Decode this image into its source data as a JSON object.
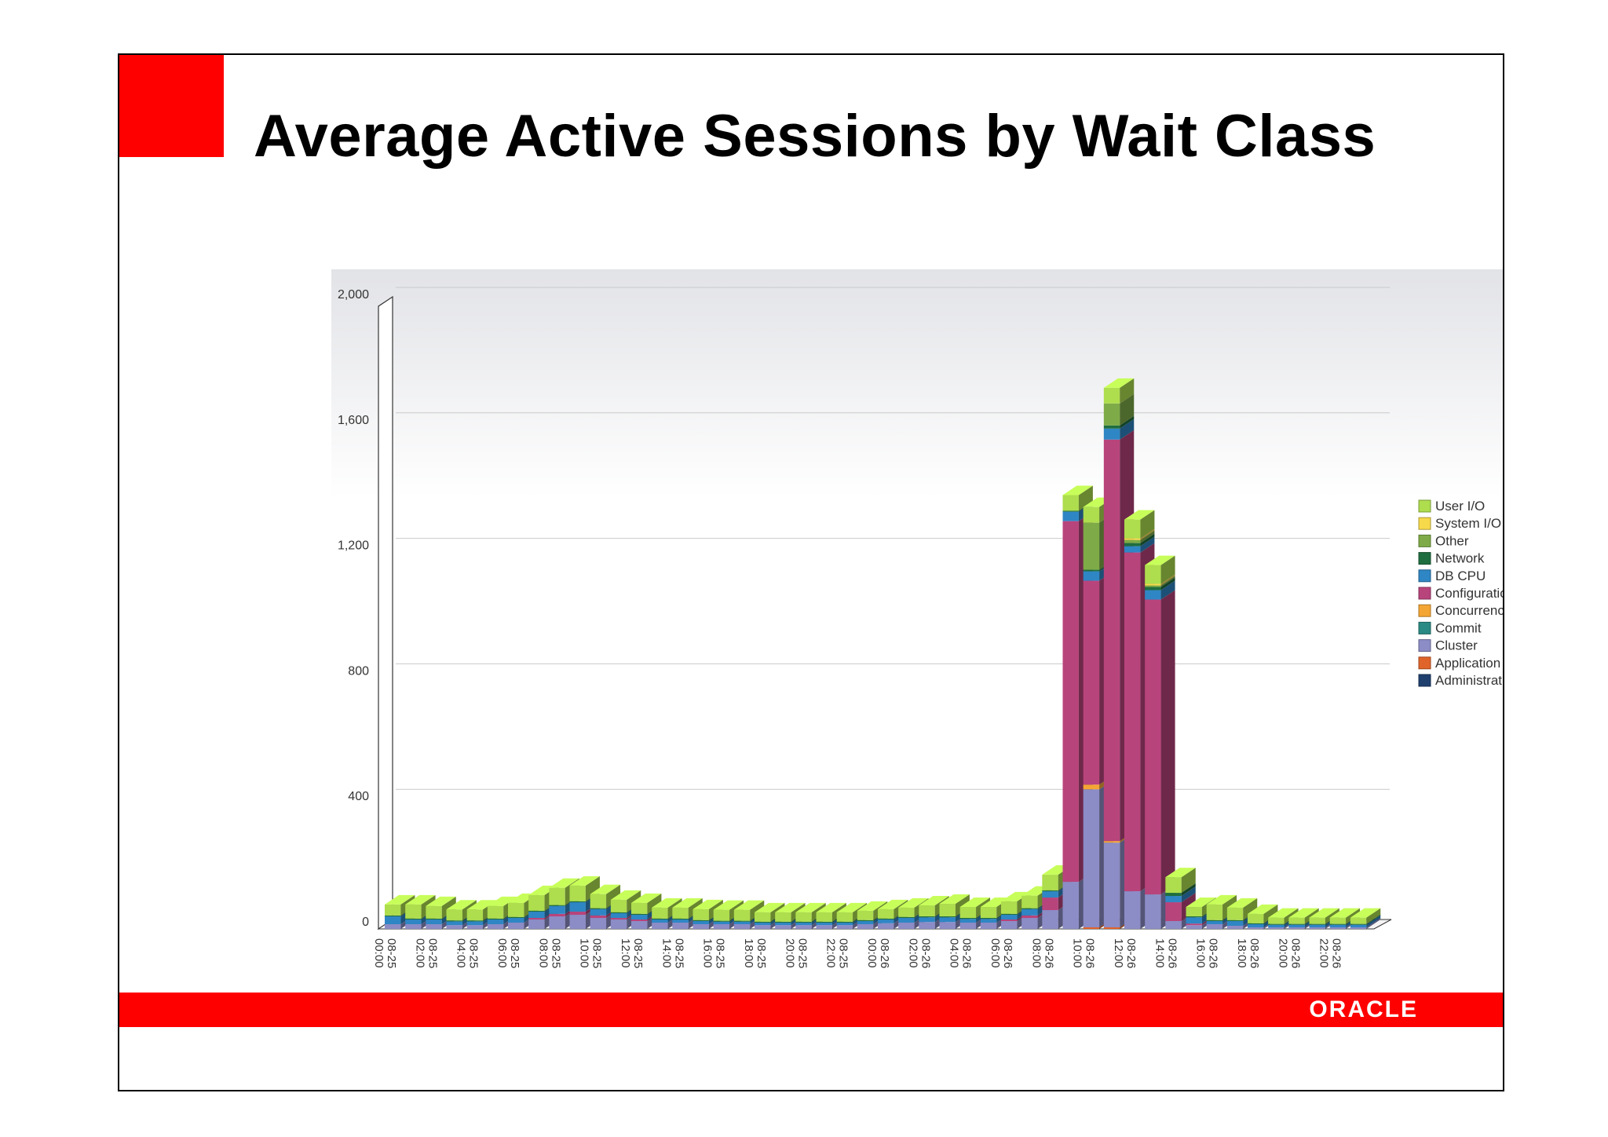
{
  "slide": {
    "title": "Average Active Sessions by Wait Class",
    "logo": "ORACLE",
    "accent_color": "#ff0000"
  },
  "chart_data": {
    "type": "bar",
    "stacked": true,
    "title": "",
    "xlabel": "",
    "ylabel": "",
    "ylim": [
      0,
      2000
    ],
    "yticks": [
      0,
      400,
      800,
      1200,
      1600,
      2000
    ],
    "ytick_labels": [
      "0",
      "400",
      "800",
      "1,200",
      "1,600",
      "2,000"
    ],
    "grid": true,
    "legend_position": "right",
    "categories": [
      "08-25 00:00",
      "08-25 01:00",
      "08-25 02:00",
      "08-25 03:00",
      "08-25 04:00",
      "08-25 05:00",
      "08-25 06:00",
      "08-25 07:00",
      "08-25 08:00",
      "08-25 09:00",
      "08-25 10:00",
      "08-25 11:00",
      "08-25 12:00",
      "08-25 13:00",
      "08-25 14:00",
      "08-25 15:00",
      "08-25 16:00",
      "08-25 17:00",
      "08-25 18:00",
      "08-25 19:00",
      "08-25 20:00",
      "08-25 21:00",
      "08-25 22:00",
      "08-25 23:00",
      "08-26 00:00",
      "08-26 01:00",
      "08-26 02:00",
      "08-26 03:00",
      "08-26 04:00",
      "08-26 05:00",
      "08-26 06:00",
      "08-26 07:00",
      "08-26 08:00",
      "08-26 09:00",
      "08-26 10:00",
      "08-26 11:00",
      "08-26 12:00",
      "08-26 13:00",
      "08-26 14:00",
      "08-26 15:00",
      "08-26 16:00",
      "08-26 17:00",
      "08-26 18:00",
      "08-26 19:00",
      "08-26 20:00",
      "08-26 21:00",
      "08-26 22:00",
      "08-26 23:00"
    ],
    "x_tick_labels": [
      "08-25 00:00",
      "08-25 02:00",
      "08-25 04:00",
      "08-25 06:00",
      "08-25 08:00",
      "08-25 10:00",
      "08-25 12:00",
      "08-25 14:00",
      "08-25 16:00",
      "08-25 18:00",
      "08-25 20:00",
      "08-25 22:00",
      "08-26 00:00",
      "08-26 02:00",
      "08-26 04:00",
      "08-26 06:00",
      "08-26 08:00",
      "08-26 10:00",
      "08-26 12:00",
      "08-26 14:00",
      "08-26 16:00",
      "08-26 18:00",
      "08-26 20:00",
      "08-26 22:00"
    ],
    "series": [
      {
        "name": "Administrative",
        "color": "#1f3f6e",
        "values": [
          0,
          0,
          0,
          0,
          0,
          0,
          0,
          0,
          0,
          0,
          0,
          0,
          0,
          0,
          0,
          0,
          0,
          0,
          0,
          0,
          0,
          0,
          0,
          0,
          0,
          0,
          0,
          0,
          0,
          0,
          0,
          0,
          0,
          0,
          0,
          0,
          0,
          0,
          0,
          0,
          0,
          0,
          0,
          0,
          0,
          0,
          0,
          0
        ]
      },
      {
        "name": "Application",
        "color": "#e0642a",
        "values": [
          0,
          0,
          0,
          0,
          0,
          0,
          0,
          0,
          0,
          0,
          0,
          0,
          0,
          0,
          0,
          0,
          0,
          0,
          0,
          0,
          0,
          0,
          0,
          0,
          0,
          0,
          0,
          0,
          0,
          0,
          0,
          0,
          0,
          0,
          5,
          5,
          0,
          0,
          0,
          0,
          0,
          0,
          0,
          0,
          0,
          0,
          0,
          0
        ]
      },
      {
        "name": "Cluster",
        "color": "#8c8cc6",
        "values": [
          15,
          15,
          15,
          12,
          12,
          15,
          20,
          30,
          40,
          45,
          35,
          30,
          25,
          20,
          20,
          15,
          15,
          15,
          12,
          12,
          12,
          12,
          12,
          15,
          18,
          20,
          22,
          22,
          20,
          20,
          25,
          35,
          60,
          150,
          440,
          270,
          120,
          110,
          25,
          12,
          15,
          10,
          5,
          5,
          5,
          5,
          5,
          5
        ]
      },
      {
        "name": "Commit",
        "color": "#2a8a84",
        "values": [
          0,
          0,
          0,
          0,
          0,
          0,
          0,
          0,
          0,
          0,
          0,
          0,
          0,
          0,
          0,
          0,
          0,
          0,
          0,
          0,
          0,
          0,
          0,
          0,
          0,
          0,
          0,
          0,
          0,
          0,
          0,
          0,
          0,
          0,
          0,
          0,
          0,
          0,
          0,
          0,
          0,
          0,
          0,
          0,
          0,
          0,
          0,
          0
        ]
      },
      {
        "name": "Concurrency",
        "color": "#f4a634",
        "values": [
          0,
          0,
          0,
          0,
          0,
          0,
          0,
          0,
          0,
          0,
          0,
          0,
          0,
          0,
          0,
          0,
          0,
          0,
          0,
          0,
          0,
          0,
          0,
          0,
          0,
          0,
          0,
          0,
          0,
          0,
          0,
          0,
          0,
          0,
          15,
          5,
          0,
          0,
          0,
          0,
          0,
          0,
          0,
          0,
          0,
          0,
          0,
          0
        ]
      },
      {
        "name": "Configuration",
        "color": "#b8447c",
        "values": [
          0,
          0,
          0,
          0,
          0,
          0,
          0,
          5,
          8,
          10,
          8,
          5,
          5,
          0,
          0,
          0,
          0,
          0,
          0,
          0,
          0,
          0,
          0,
          0,
          0,
          0,
          0,
          0,
          0,
          0,
          5,
          8,
          40,
          1150,
          650,
          1280,
          1080,
          940,
          60,
          5,
          0,
          0,
          0,
          0,
          0,
          0,
          0,
          0
        ]
      },
      {
        "name": "DB CPU",
        "color": "#2f86c4",
        "values": [
          25,
          15,
          15,
          12,
          12,
          15,
          15,
          20,
          25,
          30,
          20,
          15,
          15,
          10,
          10,
          10,
          8,
          8,
          8,
          8,
          8,
          8,
          8,
          10,
          12,
          15,
          15,
          15,
          12,
          12,
          15,
          20,
          20,
          30,
          30,
          35,
          20,
          30,
          20,
          20,
          10,
          15,
          10,
          8,
          8,
          8,
          8,
          8
        ]
      },
      {
        "name": "Network",
        "color": "#1f6e3f",
        "values": [
          3,
          3,
          3,
          3,
          3,
          3,
          3,
          3,
          3,
          3,
          3,
          3,
          3,
          3,
          3,
          3,
          3,
          3,
          3,
          3,
          3,
          3,
          3,
          3,
          3,
          3,
          3,
          3,
          3,
          3,
          3,
          3,
          3,
          3,
          5,
          10,
          10,
          10,
          10,
          3,
          3,
          3,
          3,
          3,
          3,
          3,
          3,
          3
        ]
      },
      {
        "name": "Other",
        "color": "#7eab47",
        "values": [
          0,
          0,
          0,
          0,
          0,
          0,
          0,
          0,
          0,
          0,
          0,
          0,
          0,
          0,
          0,
          0,
          0,
          0,
          0,
          0,
          0,
          0,
          0,
          0,
          0,
          0,
          0,
          0,
          0,
          0,
          0,
          0,
          0,
          0,
          150,
          70,
          10,
          5,
          0,
          0,
          0,
          0,
          0,
          0,
          0,
          0,
          0,
          0
        ]
      },
      {
        "name": "System I/O",
        "color": "#f7d94c",
        "values": [
          0,
          0,
          0,
          0,
          0,
          0,
          0,
          0,
          0,
          0,
          0,
          0,
          0,
          0,
          0,
          0,
          0,
          0,
          0,
          0,
          0,
          0,
          0,
          0,
          0,
          0,
          0,
          0,
          0,
          0,
          0,
          0,
          0,
          0,
          0,
          0,
          5,
          5,
          0,
          0,
          0,
          0,
          0,
          0,
          0,
          0,
          0,
          0
        ]
      },
      {
        "name": "User I/O",
        "color": "#aedd4e",
        "values": [
          35,
          45,
          40,
          35,
          35,
          40,
          45,
          50,
          55,
          50,
          45,
          40,
          35,
          35,
          35,
          35,
          35,
          35,
          30,
          30,
          30,
          30,
          30,
          30,
          30,
          30,
          35,
          40,
          35,
          35,
          40,
          40,
          50,
          50,
          50,
          50,
          60,
          60,
          50,
          30,
          50,
          40,
          30,
          20,
          20,
          20,
          20,
          20
        ]
      }
    ],
    "legend_order": [
      "User I/O",
      "System I/O",
      "Other",
      "Network",
      "DB CPU",
      "Configuration",
      "Concurrency",
      "Commit",
      "Cluster",
      "Application",
      "Administrative"
    ]
  }
}
